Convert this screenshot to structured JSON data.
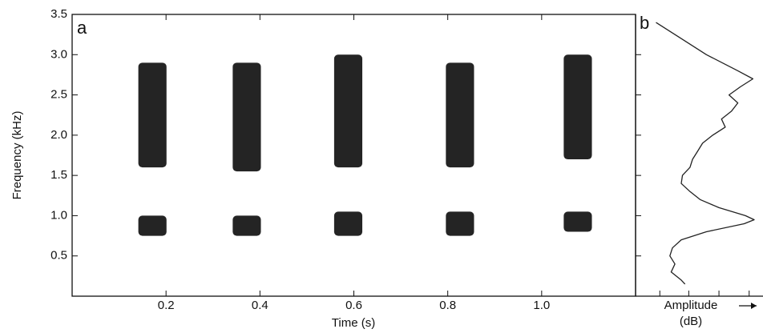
{
  "chart_data": [
    {
      "type": "spectrogram",
      "panel_label": "a",
      "xlabel": "Time (s)",
      "ylabel": "Frequency (kHz)",
      "xlim": [
        0,
        1.2
      ],
      "ylim": [
        0,
        3.5
      ],
      "xticks": [
        0.2,
        0.4,
        0.6,
        0.8,
        {
          "value": 1,
          "label": "1.0"
        }
      ],
      "yticks": [
        0.5,
        {
          "value": 1,
          "label": "1.0"
        },
        1.5,
        {
          "value": 2,
          "label": "2.0"
        },
        2.5,
        {
          "value": 3,
          "label": "3.0"
        },
        3.5
      ],
      "color": "#111111",
      "call_width": 0.06,
      "calls": [
        {
          "time": 0.171,
          "bands": [
            [
              1.6,
              2.9
            ],
            [
              0.75,
              1.0
            ]
          ]
        },
        {
          "time": 0.372,
          "bands": [
            [
              1.55,
              2.9
            ],
            [
              0.75,
              1.0
            ]
          ]
        },
        {
          "time": 0.588,
          "bands": [
            [
              1.6,
              3.0
            ],
            [
              0.75,
              1.05
            ]
          ]
        },
        {
          "time": 0.826,
          "bands": [
            [
              1.6,
              2.9
            ],
            [
              0.75,
              1.05
            ]
          ]
        },
        {
          "time": 1.077,
          "bands": [
            [
              1.7,
              3.0
            ],
            [
              0.8,
              1.05
            ]
          ]
        }
      ]
    },
    {
      "type": "spectrum",
      "panel_label": "b",
      "xlabel": "Amplitude",
      "xunit": "(dB)",
      "xlim": [
        0,
        10
      ],
      "ylim": [
        0,
        3.5
      ],
      "xticks": [
        1.8,
        4.1,
        6.5,
        8.9
      ],
      "yticks": [
        0.5,
        1,
        1.5,
        2,
        2.5,
        3
      ],
      "color": "#222222",
      "frequency": [
        3.4,
        3.2,
        3.0,
        2.8,
        2.7,
        2.6,
        2.5,
        2.4,
        2.3,
        2.2,
        2.1,
        2.0,
        1.9,
        1.8,
        1.7,
        1.6,
        1.5,
        1.4,
        1.3,
        1.2,
        1.1,
        1.0,
        0.95,
        0.9,
        0.8,
        0.7,
        0.6,
        0.5,
        0.4,
        0.3,
        0.2,
        0.15
      ],
      "amplitude": [
        1.5,
        3.5,
        5.5,
        8,
        9.2,
        8.2,
        7.3,
        8,
        7.5,
        6.7,
        7,
        6,
        5.2,
        4.8,
        4.4,
        4.2,
        3.6,
        3.5,
        4.2,
        5,
        6.5,
        8.6,
        9.3,
        8.5,
        5.5,
        3.5,
        2.8,
        2.6,
        3,
        2.7,
        3.5,
        3.8
      ]
    }
  ]
}
